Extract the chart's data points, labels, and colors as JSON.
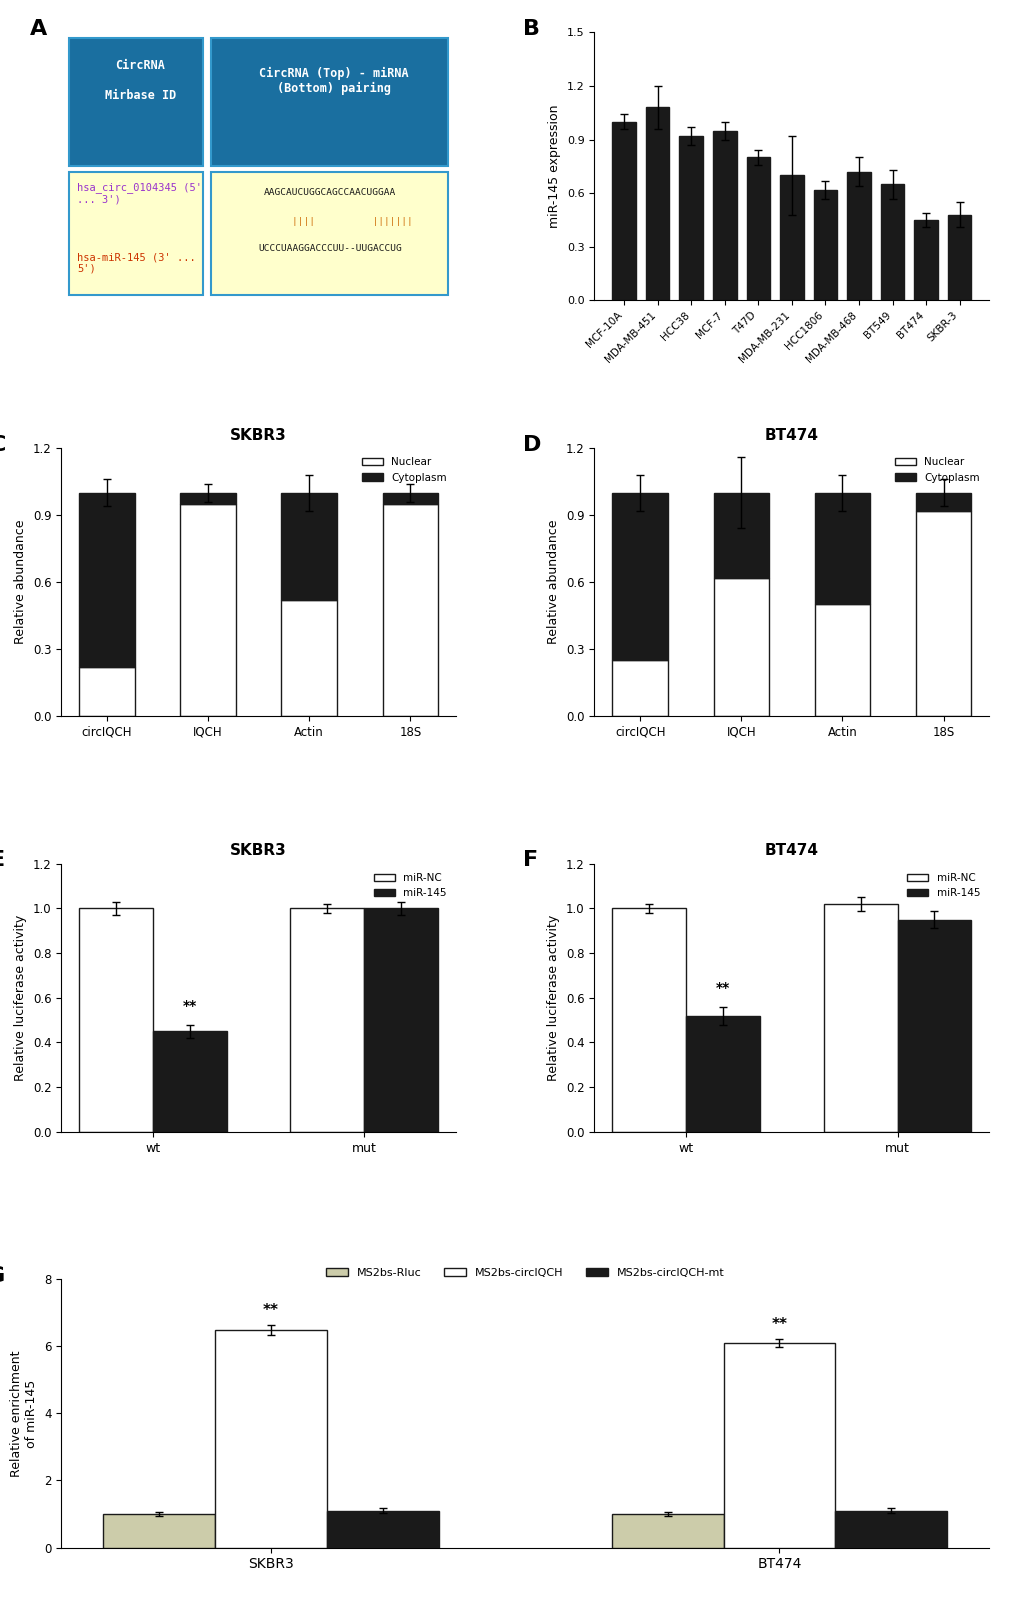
{
  "panel_A": {
    "table_header_bg": "#1a6fa0",
    "table_cell_bg": "#ffffcc",
    "table_border": "#3399cc",
    "header_text_color": "#ffffff",
    "row1_col1_color": "#9933cc",
    "row2_col1_color": "#cc3300",
    "pairing_color": "#cc6600"
  },
  "panel_B": {
    "categories": [
      "MCF-10A",
      "MDA-MB-451",
      "HCC38",
      "MCF-7",
      "T47D",
      "MDA-MB-231",
      "HCC1806",
      "MDA-MB-468",
      "BT549",
      "BT474",
      "SKBR-3"
    ],
    "values": [
      1.0,
      1.08,
      0.92,
      0.95,
      0.8,
      0.7,
      0.62,
      0.72,
      0.65,
      0.45,
      0.48
    ],
    "errors": [
      0.04,
      0.12,
      0.05,
      0.05,
      0.04,
      0.22,
      0.05,
      0.08,
      0.08,
      0.04,
      0.07
    ],
    "bar_color": "#1a1a1a",
    "ylabel": "miR-145 expression",
    "ylim": [
      0,
      1.5
    ],
    "yticks": [
      0,
      0.3,
      0.6,
      0.9,
      1.2,
      1.5
    ]
  },
  "panel_C": {
    "title": "SKBR3",
    "categories": [
      "circIQCH",
      "IQCH",
      "Actin",
      "18S"
    ],
    "nuclear": [
      0.22,
      0.95,
      0.52,
      0.95
    ],
    "cytoplasm": [
      0.78,
      0.05,
      0.48,
      0.05
    ],
    "nuclear_errors": [
      0.03,
      0.02,
      0.04,
      0.02
    ],
    "cytoplasm_errors": [
      0.03,
      0.02,
      0.04,
      0.02
    ],
    "ylabel": "Relative abundance",
    "ylim": [
      0,
      1.2
    ],
    "yticks": [
      0.0,
      0.3,
      0.6,
      0.9,
      1.2
    ],
    "legend_nuclear": "Nuclear",
    "legend_cytoplasm": "Cytoplasm",
    "color_nuclear": "#ffffff",
    "color_cytoplasm": "#1a1a1a",
    "bar_edge": "#1a1a1a"
  },
  "panel_D": {
    "title": "BT474",
    "categories": [
      "circIQCH",
      "IQCH",
      "Actin",
      "18S"
    ],
    "nuclear": [
      0.25,
      0.62,
      0.5,
      0.92
    ],
    "cytoplasm": [
      0.75,
      0.38,
      0.5,
      0.08
    ],
    "nuclear_errors": [
      0.04,
      0.08,
      0.04,
      0.03
    ],
    "cytoplasm_errors": [
      0.04,
      0.08,
      0.04,
      0.03
    ],
    "ylabel": "Relative abundance",
    "ylim": [
      0,
      1.2
    ],
    "yticks": [
      0.0,
      0.3,
      0.6,
      0.9,
      1.2
    ],
    "legend_nuclear": "Nuclear",
    "legend_cytoplasm": "Cytoplasm",
    "color_nuclear": "#ffffff",
    "color_cytoplasm": "#1a1a1a",
    "bar_edge": "#1a1a1a"
  },
  "panel_E": {
    "title": "SKBR3",
    "categories": [
      "wt",
      "mut"
    ],
    "mirNC": [
      1.0,
      1.0
    ],
    "mir145": [
      0.45,
      1.0
    ],
    "mirNC_errors": [
      0.03,
      0.02
    ],
    "mir145_errors": [
      0.03,
      0.03
    ],
    "ylabel": "Relative luciferase activity",
    "ylim": [
      0,
      1.2
    ],
    "yticks": [
      0.0,
      0.2,
      0.4,
      0.6,
      0.8,
      1.0,
      1.2
    ],
    "color_NC": "#ffffff",
    "color_145": "#1a1a1a",
    "bar_edge": "#1a1a1a",
    "legend_NC": "miR-NC",
    "legend_145": "miR-145",
    "sig_wt": "**"
  },
  "panel_F": {
    "title": "BT474",
    "categories": [
      "wt",
      "mut"
    ],
    "mirNC": [
      1.0,
      1.02
    ],
    "mir145": [
      0.52,
      0.95
    ],
    "mirNC_errors": [
      0.02,
      0.03
    ],
    "mir145_errors": [
      0.04,
      0.04
    ],
    "ylabel": "Relative luciferase activity",
    "ylim": [
      0,
      1.2
    ],
    "yticks": [
      0.0,
      0.2,
      0.4,
      0.6,
      0.8,
      1.0,
      1.2
    ],
    "color_NC": "#ffffff",
    "color_145": "#1a1a1a",
    "bar_edge": "#1a1a1a",
    "legend_NC": "miR-NC",
    "legend_145": "miR-145",
    "sig_wt": "**"
  },
  "panel_G": {
    "groups": [
      "SKBR3",
      "BT474"
    ],
    "conditions": [
      "MS2bs-Rluc",
      "MS2bs-circIQCH",
      "MS2bs-circIQCH-mt"
    ],
    "values_SKBR3": [
      1.0,
      6.5,
      1.1
    ],
    "values_BT474": [
      1.0,
      6.1,
      1.1
    ],
    "errors_SKBR3": [
      0.05,
      0.15,
      0.08
    ],
    "errors_BT474": [
      0.05,
      0.12,
      0.08
    ],
    "ylabel": "Relative enrichment\nof miR-145",
    "ylim": [
      0,
      8.0
    ],
    "yticks": [
      0.0,
      2.0,
      4.0,
      6.0,
      8.0
    ],
    "colors": [
      "#ccccaa",
      "#ffffff",
      "#1a1a1a"
    ],
    "bar_edge": "#1a1a1a",
    "sig_SKBR3": "**",
    "sig_BT474": "**"
  }
}
